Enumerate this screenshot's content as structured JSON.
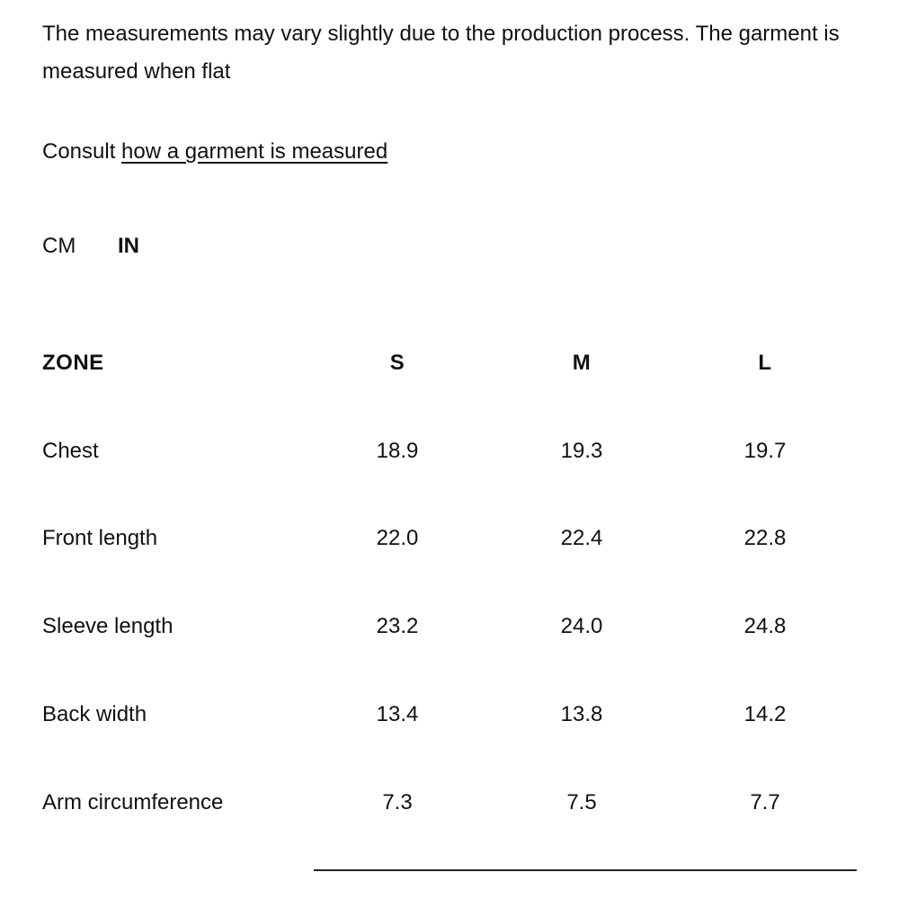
{
  "intro": "The measurements may vary slightly due to the production process. The garment is measured when flat",
  "consult": {
    "text": "Consult",
    "link": "how a garment is measured"
  },
  "units": [
    "CM",
    "IN"
  ],
  "selected_unit": "IN",
  "table": {
    "header": [
      "ZONE",
      "S",
      "M",
      "L"
    ],
    "rows": [
      [
        "Chest",
        "18.9",
        "19.3",
        "19.7"
      ],
      [
        "Front length",
        "22.0",
        "22.4",
        "22.8"
      ],
      [
        "Sleeve length",
        "23.2",
        "24.0",
        "24.8"
      ],
      [
        "Back width",
        "13.4",
        "13.8",
        "14.2"
      ],
      [
        "Arm circumference",
        "7.3",
        "7.5",
        "7.7"
      ]
    ]
  }
}
